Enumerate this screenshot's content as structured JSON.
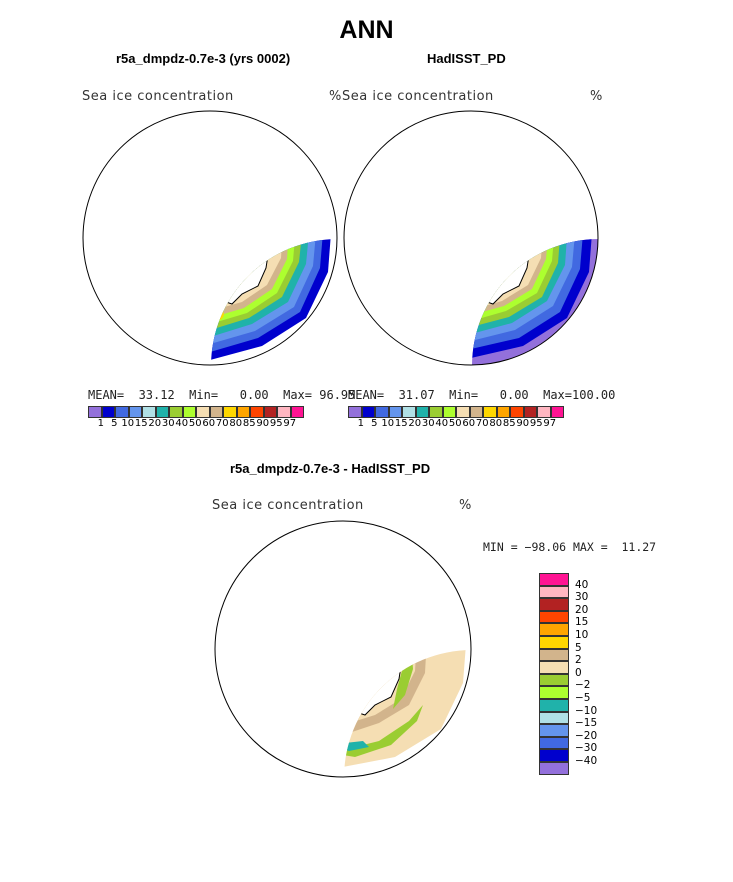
{
  "title": "ANN",
  "panels": [
    {
      "title": "r5a_dmpdz-0.7e-3 (yrs 0002)",
      "variable": "Sea ice concentration",
      "units": "%",
      "stats": {
        "mean_label": "MEAN=",
        "mean": "33.12",
        "min_label": "Min=",
        "min": "0.00",
        "max_label": "Max=",
        "max": "96.95"
      }
    },
    {
      "title": "HadISST_PD",
      "variable": "Sea ice concentration",
      "units": "%",
      "stats": {
        "mean_label": "MEAN=",
        "mean": "31.07",
        "min_label": "Min=",
        "min": "0.00",
        "max_label": "Max=",
        "max": "100.00"
      }
    },
    {
      "title": "r5a_dmpdz-0.7e-3 - HadISST_PD",
      "variable": "Sea ice concentration",
      "units": "%",
      "minmax": "MIN = −98.06 MAX =  11.27"
    }
  ],
  "colorbar": {
    "colors": [
      "#9370DB",
      "#0000CD",
      "#4169E1",
      "#6495ED",
      "#B0E0E6",
      "#20B2AA",
      "#9ACD32",
      "#ADFF2F",
      "#F5DEB3",
      "#D2B48C",
      "#FFD700",
      "#FFA500",
      "#FF4500",
      "#B22222",
      "#FFB6C1",
      "#FF1493"
    ],
    "labels": [
      "1",
      "5",
      "10",
      "15",
      "20",
      "30",
      "40",
      "50",
      "60",
      "70",
      "80",
      "85",
      "90",
      "95",
      "97"
    ]
  },
  "diff_colorbar": {
    "colors": [
      "#FF1493",
      "#FFB6C1",
      "#B22222",
      "#FF4500",
      "#FFA500",
      "#FFD700",
      "#D2B48C",
      "#F5DEB3",
      "#9ACD32",
      "#ADFF2F",
      "#20B2AA",
      "#B0E0E6",
      "#6495ED",
      "#4169E1",
      "#0000CD",
      "#9370DB"
    ],
    "labels": [
      "40",
      "30",
      "20",
      "15",
      "10",
      "5",
      "2",
      "0",
      "−2",
      "−5",
      "−10",
      "−15",
      "−20",
      "−30",
      "−40"
    ]
  },
  "map_colors": {
    "purple": "#9370DB",
    "navy": "#0000CD",
    "blue": "#4169E1",
    "cornflower": "#6495ED",
    "powder": "#B0E0E6",
    "teal": "#20B2AA",
    "olive": "#9ACD32",
    "lime": "#ADFF2F",
    "wheat": "#F5DEB3",
    "tan": "#D2B48C",
    "gold": "#FFD700",
    "orange": "#FFA500",
    "red": "#FF4500",
    "brick": "#B22222",
    "pink": "#FFB6C1",
    "magenta": "#FF1493"
  }
}
